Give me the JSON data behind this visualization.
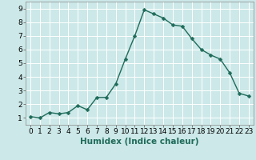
{
  "x": [
    0,
    1,
    2,
    3,
    4,
    5,
    6,
    7,
    8,
    9,
    10,
    11,
    12,
    13,
    14,
    15,
    16,
    17,
    18,
    19,
    20,
    21,
    22,
    23
  ],
  "y": [
    1.1,
    1.0,
    1.4,
    1.3,
    1.4,
    1.9,
    1.6,
    2.5,
    2.5,
    3.5,
    5.3,
    7.0,
    8.9,
    8.6,
    8.3,
    7.8,
    7.7,
    6.8,
    6.0,
    5.6,
    5.3,
    4.3,
    2.8,
    2.6
  ],
  "line_color": "#1f6b5a",
  "marker": "D",
  "marker_size": 2.5,
  "line_width": 1.0,
  "background_color": "#cce8e8",
  "grid_color": "#ffffff",
  "xlabel": "Humidex (Indice chaleur)",
  "xlabel_fontsize": 7.5,
  "xlim": [
    -0.5,
    23.5
  ],
  "ylim": [
    0.5,
    9.5
  ],
  "yticks": [
    1,
    2,
    3,
    4,
    5,
    6,
    7,
    8,
    9
  ],
  "xticks": [
    0,
    1,
    2,
    3,
    4,
    5,
    6,
    7,
    8,
    9,
    10,
    11,
    12,
    13,
    14,
    15,
    16,
    17,
    18,
    19,
    20,
    21,
    22,
    23
  ],
  "tick_fontsize": 6.5
}
